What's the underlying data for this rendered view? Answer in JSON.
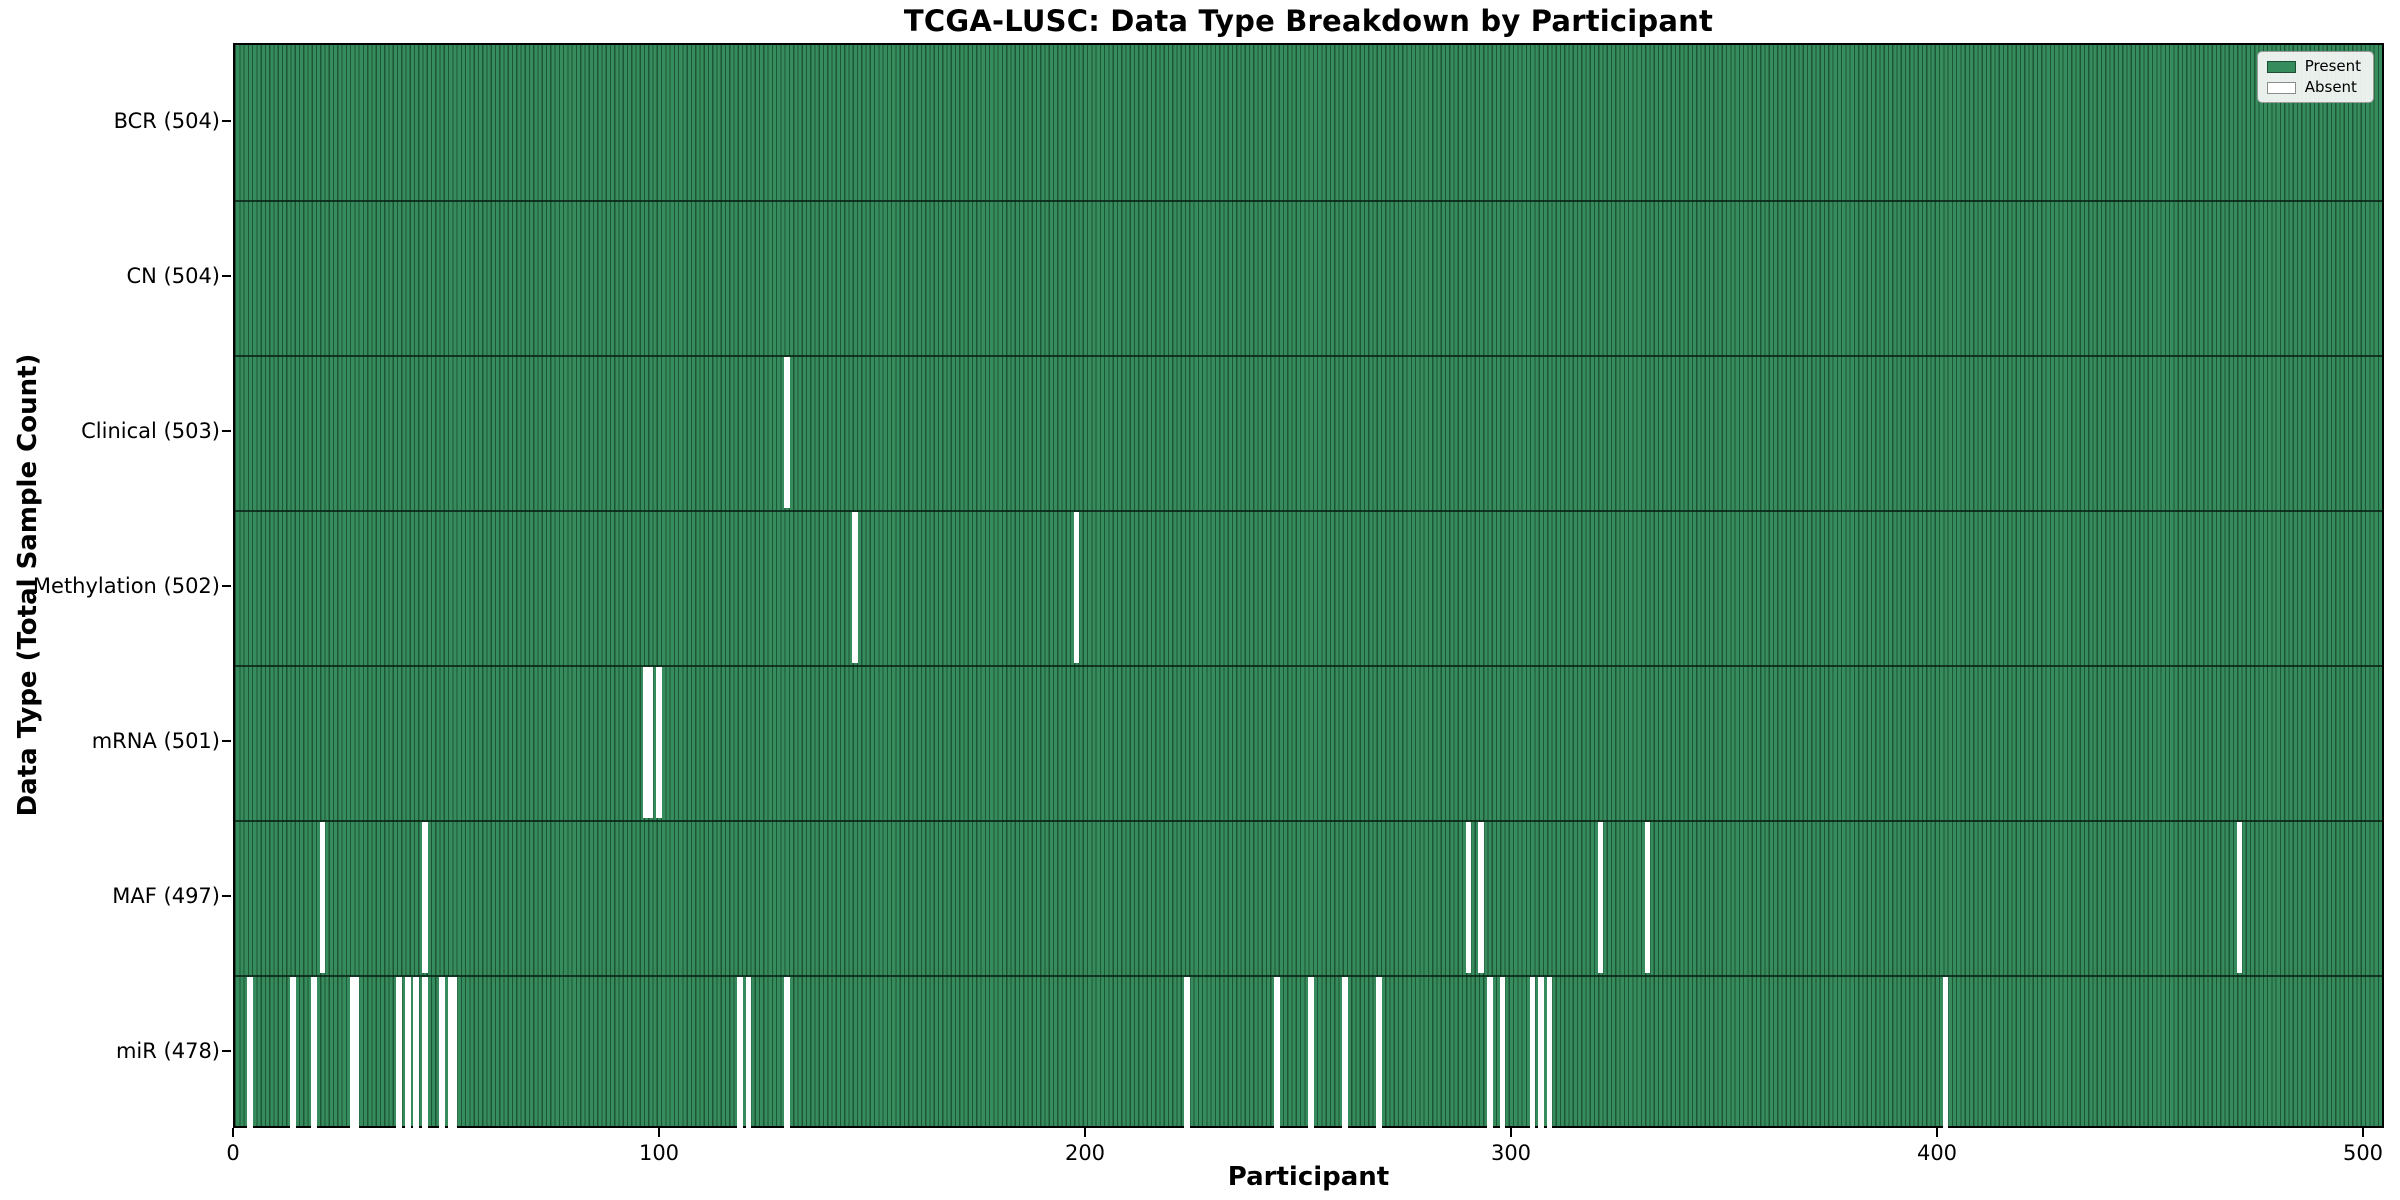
{
  "chart_data": {
    "type": "heatmap",
    "title": "TCGA-LUSC: Data Type Breakdown by Participant",
    "xlabel": "Participant",
    "ylabel": "Data Type (Total Sample Count)",
    "x_ticks": [
      0,
      100,
      200,
      300,
      400,
      500
    ],
    "x_range": [
      0,
      504
    ],
    "total_participants": 504,
    "grid": false,
    "legend_position": "upper right",
    "legend": [
      {
        "label": "Present",
        "color": "#368c5c"
      },
      {
        "label": "Absent",
        "color": "#ffffff"
      }
    ],
    "colors": {
      "present": "#368c5c",
      "bar_edge": "#1d5637",
      "absent": "#ffffff",
      "row_separator": "rgba(8,30,18,0.78)"
    },
    "rows": [
      {
        "label": "BCR (504)",
        "data_type": "BCR",
        "present_count": 504,
        "missing_participants": []
      },
      {
        "label": "CN (504)",
        "data_type": "CN",
        "present_count": 504,
        "missing_participants": []
      },
      {
        "label": "Clinical (503)",
        "data_type": "Clinical",
        "present_count": 503,
        "missing_participants": [
          129
        ]
      },
      {
        "label": "Methylation (502)",
        "data_type": "Methylation",
        "present_count": 502,
        "missing_participants": [
          145,
          197
        ]
      },
      {
        "label": "mRNA (501)",
        "data_type": "mRNA",
        "present_count": 501,
        "missing_participants": [
          96,
          97,
          99
        ]
      },
      {
        "label": "MAF (497)",
        "data_type": "MAF",
        "present_count": 497,
        "missing_participants": [
          20,
          44,
          289,
          292,
          320,
          331,
          470
        ]
      },
      {
        "label": "miR (478)",
        "data_type": "miR",
        "present_count": 478,
        "missing_participants": [
          3,
          13,
          18,
          27,
          28,
          38,
          40,
          42,
          44,
          48,
          50,
          51,
          118,
          120,
          129,
          223,
          244,
          252,
          260,
          268,
          294,
          297,
          304,
          306,
          308,
          401
        ]
      }
    ]
  }
}
